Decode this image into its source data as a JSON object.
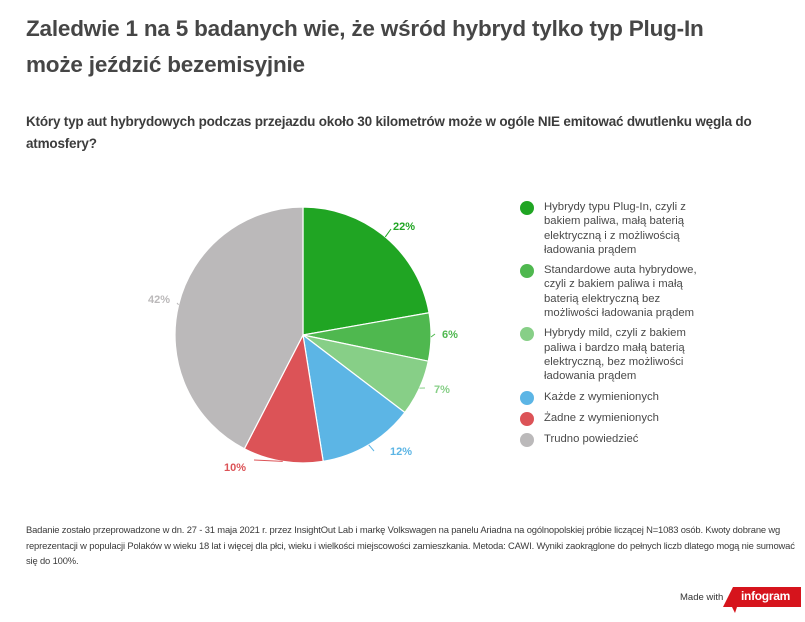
{
  "header": {
    "title": "Zaledwie 1 na 5 badanych wie, że wśród hybryd tylko typ Plug-In może jeździć bezemisyjnie",
    "subtitle": "Który typ aut hybrydowych podczas przejazdu około 30 kilometrów może w ogóle NIE emitować dwutlenku węgla do atmosfery?"
  },
  "chart_data": {
    "type": "pie",
    "title": "Który typ aut hybrydowych podczas przejazdu około 30 kilometrów może w ogóle NIE emitować dwutlenku węgla do atmosfery?",
    "categories": [
      "Hybrydy typu Plug-In, czyli z bakiem paliwa, małą baterią elektryczną i z możliwością ładowania prądem",
      "Standardowe auta hybrydowe, czyli z bakiem paliwa i małą baterią elektryczną bez możliwości ładowania prądem",
      "Hybrydy mild, czyli z bakiem paliwa i bardzo małą baterią elektryczną, bez możliwości ładowania prądem",
      "Każde z wymienionych",
      "Żadne z wymienionych",
      "Trudno powiedzieć"
    ],
    "values": [
      22,
      6,
      7,
      12,
      10,
      42
    ],
    "labels": [
      "22%",
      "6%",
      "7%",
      "12%",
      "10%",
      "42%"
    ],
    "colors": [
      "#20a523",
      "#4fb84f",
      "#87cf87",
      "#5cb5e5",
      "#dc5357",
      "#bbb9ba"
    ],
    "legend_position": "right",
    "start_angle": "12 o'clock, clockwise"
  },
  "legend": {
    "items": [
      {
        "label": "Hybrydy typu Plug-In, czyli z bakiem paliwa, małą baterią elektryczną i z możliwością ładowania prądem",
        "color": "#20a523"
      },
      {
        "label": "Standardowe auta hybrydowe, czyli z bakiem paliwa i małą baterią elektryczną bez możliwości ładowania prądem",
        "color": "#4fb84f"
      },
      {
        "label": "Hybrydy mild, czyli z bakiem paliwa i bardzo małą baterią elektryczną, bez możliwości ładowania prądem",
        "color": "#87cf87"
      },
      {
        "label": "Każde z wymienionych",
        "color": "#5cb5e5"
      },
      {
        "label": "Żadne z wymienionych",
        "color": "#dc5357"
      },
      {
        "label": "Trudno powiedzieć",
        "color": "#bbb9ba"
      }
    ]
  },
  "footnote": {
    "text": "Badanie zostało przeprowadzone w dn. 27 - 31 maja 2021 r. przez InsightOut Lab i markę Volkswagen na panelu Ariadna na ogólnopolskiej próbie liczącej N=1083 osób. Kwoty dobrane wg reprezentacji w populacji Polaków w wieku 18 lat i więcej dla płci, wieku i wielkości miejscowości zamieszkania. Metoda: CAWI. Wyniki zaokrąglone do pełnych liczb dlatego mogą nie sumować się do 100%."
  },
  "branding": {
    "made_with": "Made with",
    "logo_text": "infogram",
    "logo_color": "#d6141c"
  }
}
